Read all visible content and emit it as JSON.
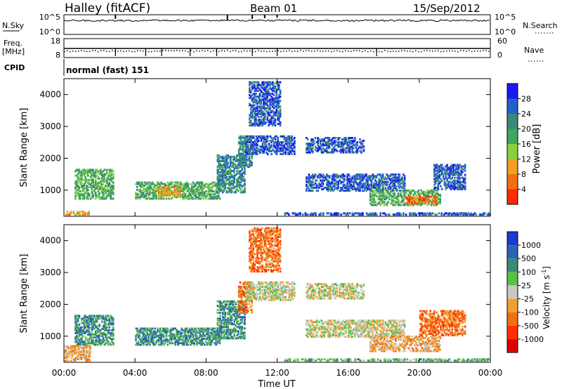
{
  "header": {
    "station": "Halley (fitACF)",
    "beam": "Beam 01",
    "date": "15/Sep/2012"
  },
  "noise_panel": {
    "left_label": "N.Sky",
    "right_label": "N.Search",
    "left_ticks": [
      "10^5",
      "10^0"
    ],
    "right_ticks": [
      "10^5",
      "10^0"
    ]
  },
  "freq_panel": {
    "left_label_1": "Freq.",
    "left_label_2": "[MHz]",
    "right_label": "Nave",
    "left_ticks": [
      "18",
      "8"
    ],
    "right_ticks": [
      "60",
      "0"
    ]
  },
  "cpid": {
    "label": "CPID",
    "value": "normal (fast) 151"
  },
  "chart_data": [
    {
      "type": "heatmap",
      "name_shown": "Power",
      "ylabel": "Slant Range [km]",
      "xlabel": "",
      "ylim": [
        180,
        4500
      ],
      "yticks": [
        "1000",
        "2000",
        "3000",
        "4000"
      ],
      "xlim_hours": [
        0,
        24
      ],
      "colorbar": {
        "label": "Power [dB]",
        "ticks": [
          "4",
          "8",
          "12",
          "16",
          "20",
          "24",
          "28"
        ],
        "colors": [
          "#1a1af2",
          "#2460c8",
          "#3a8a78",
          "#3ca85a",
          "#88d040",
          "#f0a020",
          "#f07010",
          "#ff2a00"
        ]
      },
      "regions": [
        {
          "t": [
            0.6,
            2.8
          ],
          "r": [
            700,
            1650
          ],
          "level": 3
        },
        {
          "t": [
            0.0,
            1.5
          ],
          "r": [
            200,
            330
          ],
          "level": 5
        },
        {
          "t": [
            4.0,
            8.8
          ],
          "r": [
            700,
            1250
          ],
          "level": 3
        },
        {
          "t": [
            5.3,
            6.6
          ],
          "r": [
            800,
            1100
          ],
          "level": 5
        },
        {
          "t": [
            8.6,
            10.2
          ],
          "r": [
            900,
            2100
          ],
          "level": 2
        },
        {
          "t": [
            9.8,
            10.6
          ],
          "r": [
            1700,
            2700
          ],
          "level": 2
        },
        {
          "t": [
            10.2,
            13.0
          ],
          "r": [
            2100,
            2700
          ],
          "level": 1
        },
        {
          "t": [
            10.4,
            12.2
          ],
          "r": [
            3000,
            4400
          ],
          "level": 1
        },
        {
          "t": [
            13.6,
            16.9
          ],
          "r": [
            2150,
            2650
          ],
          "level": 1
        },
        {
          "t": [
            13.6,
            19.2
          ],
          "r": [
            950,
            1500
          ],
          "level": 1
        },
        {
          "t": [
            17.2,
            21.2
          ],
          "r": [
            500,
            1000
          ],
          "level": 3
        },
        {
          "t": [
            19.2,
            21.0
          ],
          "r": [
            550,
            800
          ],
          "level": 6
        },
        {
          "t": [
            20.8,
            22.6
          ],
          "r": [
            1000,
            1800
          ],
          "level": 1
        },
        {
          "t": [
            12.4,
            24.0
          ],
          "r": [
            200,
            280
          ],
          "level": 1
        }
      ]
    },
    {
      "type": "heatmap",
      "name_shown": "Velocity",
      "ylabel": "Slant Range [km]",
      "xlabel": "Time UT",
      "ylim": [
        180,
        4500
      ],
      "yticks": [
        "1000",
        "2000",
        "3000",
        "4000"
      ],
      "xlim_hours": [
        0,
        24
      ],
      "xticks": [
        "00:00",
        "04:00",
        "08:00",
        "12:00",
        "16:00",
        "20:00",
        "00:00"
      ],
      "colorbar": {
        "label": "Velocity [m s",
        "label_sup": "-1",
        "label_end": "]",
        "ticks": [
          "1000",
          "500",
          "100",
          "25",
          "-25",
          "-100",
          "-500",
          "-1000"
        ],
        "colors": [
          "#1a3ad0",
          "#2a64b4",
          "#3a8a78",
          "#58c048",
          "#c8c8c0",
          "#f0a030",
          "#f07010",
          "#ff3000",
          "#e00000"
        ]
      },
      "regions": [
        {
          "t": [
            0.6,
            2.8
          ],
          "r": [
            700,
            1650
          ],
          "level": 2
        },
        {
          "t": [
            0.0,
            1.5
          ],
          "r": [
            200,
            700
          ],
          "level": 5
        },
        {
          "t": [
            4.0,
            8.8
          ],
          "r": [
            700,
            1250
          ],
          "level": 2
        },
        {
          "t": [
            8.6,
            10.2
          ],
          "r": [
            900,
            2100
          ],
          "level": 2
        },
        {
          "t": [
            9.8,
            10.6
          ],
          "r": [
            1700,
            2700
          ],
          "level": 6
        },
        {
          "t": [
            10.2,
            13.0
          ],
          "r": [
            2100,
            2700
          ],
          "level": 4
        },
        {
          "t": [
            10.4,
            12.2
          ],
          "r": [
            3000,
            4400
          ],
          "level": 6
        },
        {
          "t": [
            13.6,
            16.9
          ],
          "r": [
            2150,
            2650
          ],
          "level": 4
        },
        {
          "t": [
            13.6,
            19.2
          ],
          "r": [
            950,
            1500
          ],
          "level": 4
        },
        {
          "t": [
            17.2,
            21.2
          ],
          "r": [
            500,
            1000
          ],
          "level": 5
        },
        {
          "t": [
            20.0,
            22.6
          ],
          "r": [
            1000,
            1800
          ],
          "level": 6
        },
        {
          "t": [
            12.4,
            24.0
          ],
          "r": [
            200,
            280
          ],
          "level": 3
        }
      ]
    }
  ]
}
